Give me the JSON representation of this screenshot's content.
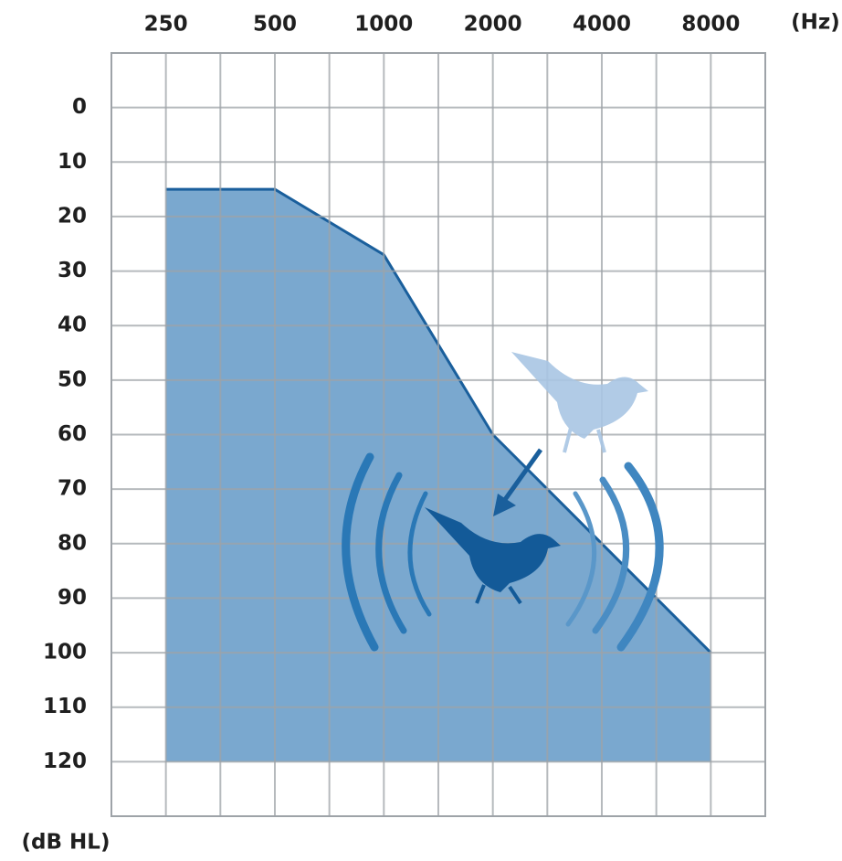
{
  "chart_data": {
    "type": "area",
    "x_label": "(Hz)",
    "y_label": "(dB HL)",
    "x": [
      250,
      500,
      1000,
      2000,
      4000,
      8000
    ],
    "series": [
      {
        "color": "#7aa8cf",
        "line_color": "#1a5f9c",
        "values": [
          15,
          15,
          27,
          60,
          80,
          100
        ]
      }
    ],
    "x_log_base": 2,
    "xlim": [
      176.8,
      11313.7
    ],
    "xticks": [
      250,
      500,
      1000,
      2000,
      4000,
      8000
    ],
    "ylim": [
      -10,
      130
    ],
    "y_inverted": true,
    "yticks": [
      0,
      10,
      20,
      30,
      40,
      50,
      60,
      70,
      80,
      90,
      100,
      110,
      120
    ],
    "grid": true
  }
}
